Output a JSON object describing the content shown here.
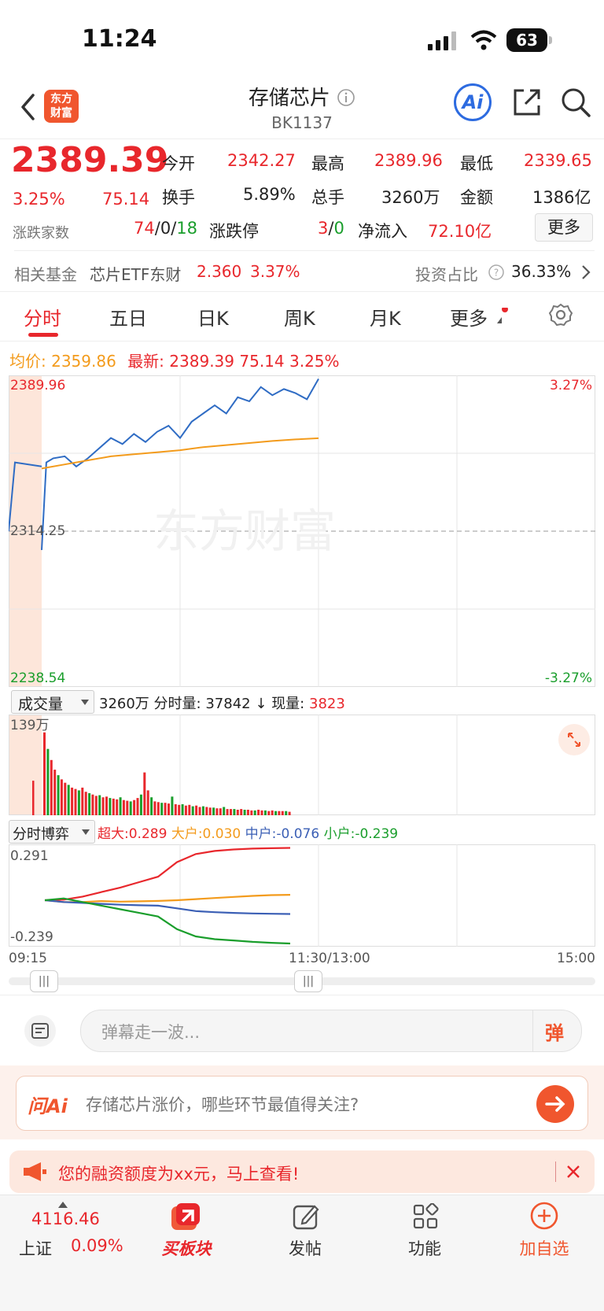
{
  "status_bar": {
    "time": "11:24",
    "battery": "63"
  },
  "header": {
    "logo_line1": "东方",
    "logo_line2": "财富",
    "title": "存储芯片",
    "code": "BK1137",
    "ai_label": "Ai"
  },
  "quote": {
    "price": "2389.39",
    "change_pct": "3.25%",
    "change": "75.14",
    "open_label": "今开",
    "open": "2342.27",
    "high_label": "最高",
    "high": "2389.96",
    "low_label": "最低",
    "low": "2339.65",
    "turnover_label": "换手",
    "turnover": "5.89%",
    "volume_label": "总手",
    "volume": "3260万",
    "amount_label": "金额",
    "amount": "1386亿",
    "breadth_label": "涨跌家数",
    "breadth_up": "74",
    "breadth_flat": "0",
    "breadth_down": "18",
    "slash": "/",
    "limit_label": "涨跌停",
    "limit_up": "3",
    "limit_down": "0",
    "netflow_label": "净流入",
    "netflow": "72.10亿",
    "more_label": "更多"
  },
  "fund": {
    "label": "相关基金",
    "name": "芯片ETF东财",
    "price": "2.360",
    "pct": "3.37%",
    "ratio_label": "投资占比",
    "ratio": "36.33%"
  },
  "tabs": [
    {
      "label": "分时"
    },
    {
      "label": "五日"
    },
    {
      "label": "日K"
    },
    {
      "label": "周K"
    },
    {
      "label": "月K"
    },
    {
      "label": "更多"
    }
  ],
  "legend": {
    "avg_label": "均价:",
    "avg": "2359.86",
    "latest_label": "最新:",
    "latest": "2389.39",
    "chg": "75.14",
    "pct": "3.25%"
  },
  "chart_data": [
    {
      "type": "line",
      "title": "分时",
      "ylim": [
        2238.54,
        2389.96
      ],
      "y_labels": {
        "top_left": "2389.96",
        "mid_left": "2314.25",
        "bottom_left": "2238.54",
        "top_right": "3.27%",
        "bottom_right": "-3.27%"
      },
      "x_tick_labels": [
        "09:15",
        "11:30/13:00",
        "15:00"
      ],
      "watermark": "东方财富",
      "series": [
        {
          "name": "最新",
          "color": "#2f6cc4",
          "x": [
            0,
            2,
            5,
            10,
            15,
            20,
            25,
            30,
            35,
            40,
            45,
            50,
            55,
            60,
            65,
            70,
            75,
            80,
            85,
            90,
            95,
            100,
            105,
            110,
            115,
            120
          ],
          "values": [
            2305,
            2348,
            2350,
            2351,
            2346,
            2350,
            2355,
            2360,
            2357,
            2362,
            2358,
            2363,
            2366,
            2360,
            2368,
            2372,
            2376,
            2372,
            2380,
            2378,
            2385,
            2381,
            2384,
            2382,
            2379,
            2389
          ]
        },
        {
          "name": "均价",
          "color": "#f39b1c",
          "x": [
            0,
            10,
            20,
            30,
            40,
            50,
            60,
            70,
            80,
            90,
            100,
            110,
            120
          ],
          "values": [
            2345,
            2347,
            2349,
            2351,
            2352,
            2353,
            2354,
            2355.5,
            2356.5,
            2357.5,
            2358.5,
            2359.3,
            2359.86
          ]
        }
      ]
    },
    {
      "type": "bar",
      "title": "成交量",
      "ylim": [
        0,
        139
      ],
      "y_label": "139万",
      "summary": {
        "total": "3260万",
        "period_label": "分时量:",
        "period": "37842",
        "arrow": "↓",
        "now_label": "现量:",
        "now": "3823"
      },
      "series": [
        {
          "name": "成交量",
          "values": [
            120,
            96,
            80,
            66,
            58,
            52,
            47,
            44,
            40,
            38,
            36,
            40,
            34,
            32,
            30,
            28,
            29,
            26,
            27,
            25,
            24,
            23,
            26,
            22,
            21,
            20,
            22,
            25,
            30,
            62,
            36,
            26,
            20,
            19,
            18,
            18,
            17,
            27,
            16,
            15,
            16,
            14,
            15,
            13,
            14,
            12,
            13,
            12,
            11,
            11,
            10,
            10,
            12,
            9,
            9,
            9,
            8,
            9,
            8,
            8,
            7,
            7,
            8,
            7,
            7,
            6,
            7,
            6,
            6,
            6,
            6,
            5
          ]
        }
      ]
    },
    {
      "type": "line",
      "title": "分时博弈",
      "ylim": [
        -0.239,
        0.291
      ],
      "y_labels": {
        "top": "0.291",
        "bottom": "-0.239"
      },
      "series": [
        {
          "name": "超大",
          "value_label": "0.289",
          "color": "#e8272c",
          "values": [
            0,
            0.003,
            0.02,
            0.045,
            0.07,
            0.1,
            0.13,
            0.21,
            0.255,
            0.272,
            0.28,
            0.285,
            0.287,
            0.289
          ]
        },
        {
          "name": "大户",
          "value_label": "0.030",
          "color": "#f39b1c",
          "values": [
            0,
            -0.01,
            -0.01,
            -0.005,
            -0.008,
            -0.006,
            -0.004,
            0.0,
            0.006,
            0.012,
            0.018,
            0.024,
            0.028,
            0.03
          ]
        },
        {
          "name": "中户",
          "value_label": "-0.076",
          "color": "#3b5fb5",
          "values": [
            0,
            -0.01,
            -0.015,
            -0.02,
            -0.025,
            -0.028,
            -0.03,
            -0.045,
            -0.06,
            -0.066,
            -0.07,
            -0.073,
            -0.075,
            -0.076
          ]
        },
        {
          "name": "小户",
          "value_label": "-0.239",
          "color": "#1a9e2c",
          "values": [
            0,
            0.01,
            -0.01,
            -0.03,
            -0.05,
            -0.07,
            -0.09,
            -0.16,
            -0.2,
            -0.215,
            -0.222,
            -0.23,
            -0.235,
            -0.239
          ]
        }
      ]
    }
  ],
  "danmu": {
    "placeholder": "弹幕走一波...",
    "icon_label": "弹"
  },
  "ask_ai": {
    "brand": "问Ai",
    "question": "存储芯片涨价，哪些环节最值得关注?"
  },
  "notice": {
    "text": "您的融资额度为xx元，马上查看!"
  },
  "bottom_nav": {
    "index_value": "4116.46",
    "index_name": "上证",
    "index_pct": "0.09%",
    "buy_label": "买板块",
    "post_label": "发帖",
    "func_label": "功能",
    "add_label": "加自选"
  },
  "colors": {
    "up": "#e8272c",
    "down": "#1a9e2c",
    "avg": "#f39b1c",
    "price_line": "#2f6cc4",
    "brand": "#f0562e"
  }
}
